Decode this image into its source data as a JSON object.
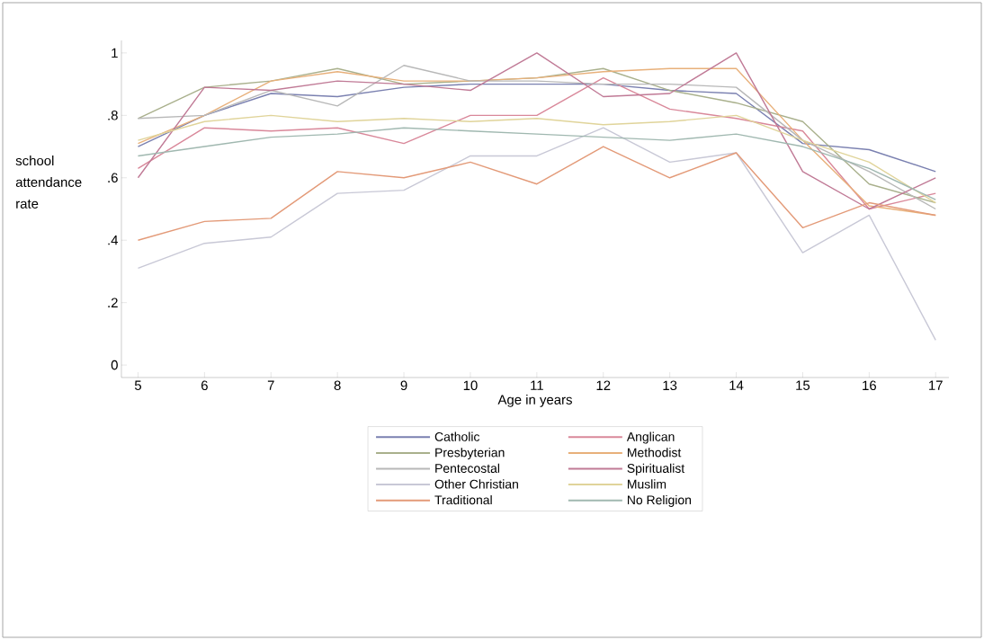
{
  "chart_data": {
    "type": "line",
    "xlabel": "Age in years",
    "ylabel": "school attendance rate",
    "x": [
      5,
      6,
      7,
      8,
      9,
      10,
      11,
      12,
      13,
      14,
      15,
      16,
      17
    ],
    "xlim": [
      4.75,
      17.2
    ],
    "xticks": [
      5,
      6,
      7,
      8,
      9,
      10,
      11,
      12,
      13,
      14,
      15,
      16,
      17
    ],
    "ylim": [
      -0.04,
      1.04
    ],
    "yticks": [
      {
        "value": 0,
        "label": "0"
      },
      {
        "value": 0.2,
        "label": ".2"
      },
      {
        "value": 0.4,
        "label": ".4"
      },
      {
        "value": 0.6,
        "label": ".6"
      },
      {
        "value": 0.8,
        "label": ".8"
      },
      {
        "value": 1,
        "label": "1"
      }
    ],
    "grid": false,
    "legend": "bottom",
    "marker": "none",
    "line_style": "solid",
    "series": [
      {
        "name": "Catholic",
        "color": "#7a80b0",
        "values": [
          0.7,
          0.8,
          0.87,
          0.86,
          0.89,
          0.9,
          0.9,
          0.9,
          0.88,
          0.87,
          0.71,
          0.69,
          0.62
        ]
      },
      {
        "name": "Anglican",
        "color": "#d9889a",
        "values": [
          0.63,
          0.76,
          0.75,
          0.76,
          0.71,
          0.8,
          0.8,
          0.92,
          0.82,
          0.79,
          0.75,
          0.5,
          0.55
        ]
      },
      {
        "name": "Presbyterian",
        "color": "#a9b08c",
        "values": [
          0.79,
          0.89,
          0.91,
          0.95,
          0.9,
          0.91,
          0.92,
          0.95,
          0.88,
          0.84,
          0.78,
          0.58,
          0.52
        ]
      },
      {
        "name": "Methodist",
        "color": "#e8b07a",
        "values": [
          0.71,
          0.8,
          0.91,
          0.94,
          0.91,
          0.91,
          0.92,
          0.94,
          0.95,
          0.95,
          0.72,
          0.51,
          0.48
        ]
      },
      {
        "name": "Pentecostal",
        "color": "#b8b8b8",
        "values": [
          0.79,
          0.8,
          0.88,
          0.83,
          0.96,
          0.91,
          0.91,
          0.9,
          0.9,
          0.89,
          0.72,
          0.62,
          0.5
        ]
      },
      {
        "name": "Spiritualist",
        "color": "#c07a96",
        "values": [
          0.6,
          0.89,
          0.88,
          0.91,
          0.9,
          0.88,
          1.0,
          0.86,
          0.87,
          1.0,
          0.62,
          0.5,
          0.6
        ]
      },
      {
        "name": "Other Christian",
        "color": "#c8c8d6",
        "values": [
          0.31,
          0.39,
          0.41,
          0.55,
          0.56,
          0.67,
          0.67,
          0.76,
          0.65,
          0.68,
          0.36,
          0.48,
          0.08
        ]
      },
      {
        "name": "Muslim",
        "color": "#e0d49a",
        "values": [
          0.72,
          0.78,
          0.8,
          0.78,
          0.79,
          0.78,
          0.79,
          0.77,
          0.78,
          0.8,
          0.72,
          0.65,
          0.52
        ]
      },
      {
        "name": "Traditional",
        "color": "#e39a78",
        "values": [
          0.4,
          0.46,
          0.47,
          0.62,
          0.6,
          0.65,
          0.58,
          0.7,
          0.6,
          0.68,
          0.44,
          0.52,
          0.48
        ]
      },
      {
        "name": "No Religion",
        "color": "#a0b8b0",
        "values": [
          0.67,
          0.7,
          0.73,
          0.74,
          0.76,
          0.75,
          0.74,
          0.73,
          0.72,
          0.74,
          0.7,
          0.63,
          0.53
        ]
      }
    ]
  }
}
